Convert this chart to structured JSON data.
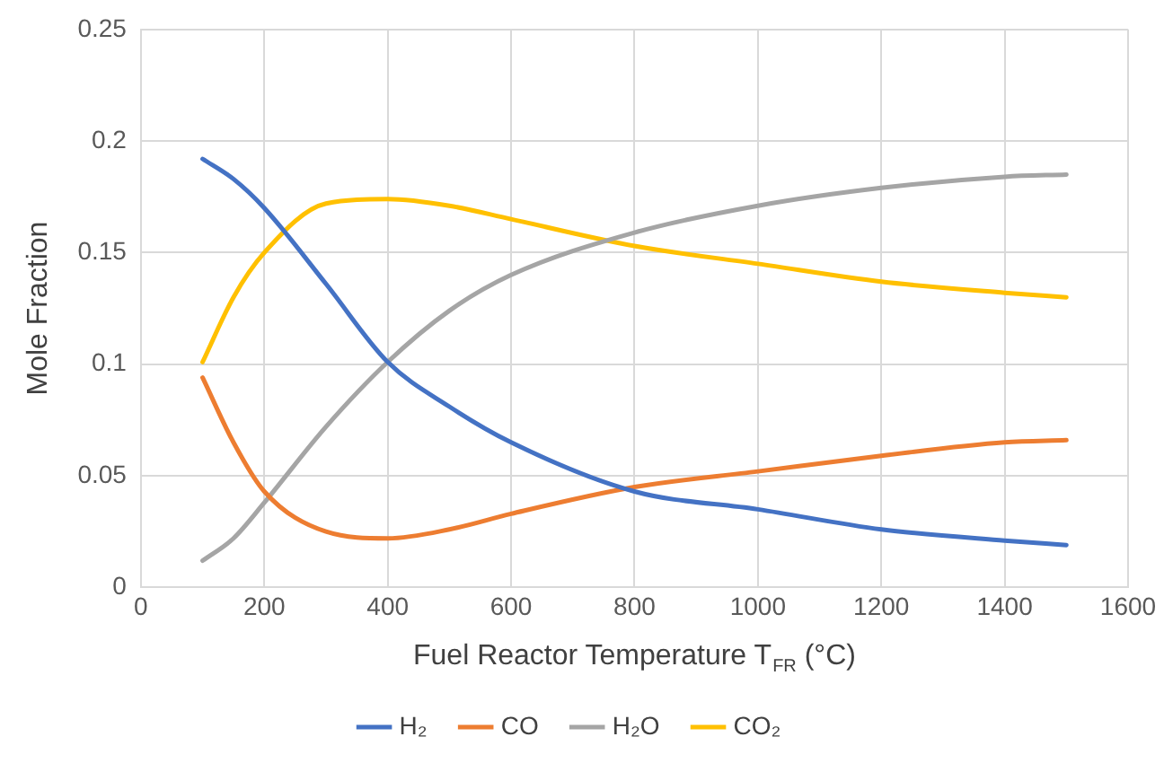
{
  "chart_data": {
    "type": "line",
    "xlabel": "Fuel Reactor Temperature T$_{FR}$ (°C)",
    "ylabel": "Mole Fraction",
    "x": [
      100,
      150,
      200,
      300,
      400,
      500,
      600,
      800,
      1000,
      1200,
      1400,
      1500
    ],
    "series": [
      {
        "name": "H₂",
        "color": "#4472c4",
        "values": [
          0.192,
          0.183,
          0.17,
          0.136,
          0.101,
          0.081,
          0.065,
          0.043,
          0.035,
          0.026,
          0.021,
          0.019
        ]
      },
      {
        "name": "CO",
        "color": "#ed7d31",
        "values": [
          0.094,
          0.065,
          0.043,
          0.025,
          0.022,
          0.026,
          0.033,
          0.045,
          0.052,
          0.059,
          0.065,
          0.066
        ]
      },
      {
        "name": "H₂O",
        "color": "#a5a5a5",
        "values": [
          0.012,
          0.022,
          0.038,
          0.072,
          0.101,
          0.124,
          0.14,
          0.159,
          0.171,
          0.179,
          0.184,
          0.185
        ]
      },
      {
        "name": "CO₂",
        "color": "#ffc000",
        "values": [
          0.101,
          0.13,
          0.15,
          0.172,
          0.174,
          0.171,
          0.165,
          0.153,
          0.145,
          0.137,
          0.132,
          0.13
        ]
      }
    ],
    "xlim": [
      0,
      1600
    ],
    "xticks": [
      0,
      200,
      400,
      600,
      800,
      1000,
      1200,
      1400,
      1600
    ],
    "ylim": [
      0,
      0.25
    ],
    "yticks": [
      0,
      0.05,
      0.1,
      0.15,
      0.2,
      0.25
    ],
    "grid": true,
    "legend": "bottom",
    "marker": "none",
    "line_style": "solid"
  }
}
